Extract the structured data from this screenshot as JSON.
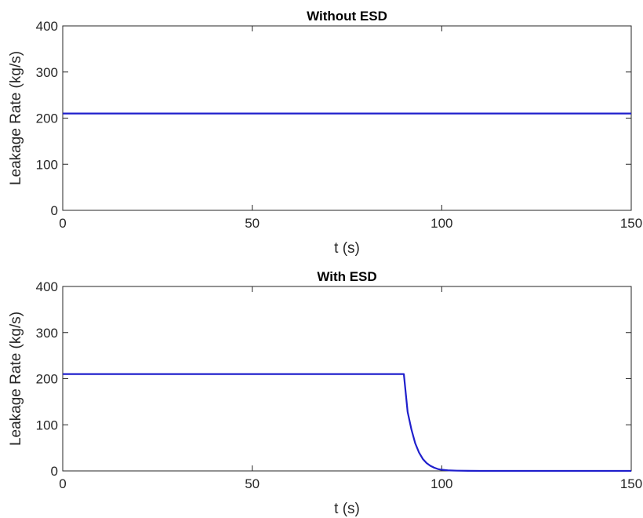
{
  "chart_data": [
    {
      "type": "line",
      "title": "Without ESD",
      "xlabel": "t (s)",
      "ylabel": "Leakage Rate (kg/s)",
      "xlim": [
        0,
        150
      ],
      "ylim": [
        0,
        400
      ],
      "xticks": [
        0,
        50,
        100,
        150
      ],
      "yticks": [
        0,
        100,
        200,
        300,
        400
      ],
      "grid": false,
      "legend": "none",
      "color": "#1f1fcc",
      "series": [
        {
          "x": [
            0,
            150
          ],
          "y": [
            210,
            210
          ]
        }
      ]
    },
    {
      "type": "line",
      "title": "With ESD",
      "xlabel": "t (s)",
      "ylabel": "Leakage Rate (kg/s)",
      "xlim": [
        0,
        150
      ],
      "ylim": [
        0,
        400
      ],
      "xticks": [
        0,
        50,
        100,
        150
      ],
      "yticks": [
        0,
        100,
        200,
        300,
        400
      ],
      "grid": false,
      "legend": "none",
      "color": "#1f1fcc",
      "series": [
        {
          "x": [
            0,
            90,
            91,
            92,
            93,
            94,
            95,
            96,
            97,
            98,
            99,
            100,
            102,
            104,
            107,
            110,
            150
          ],
          "y": [
            210,
            210,
            128,
            90,
            60,
            40,
            26,
            17,
            11,
            7,
            4,
            2.5,
            1,
            0.5,
            0.2,
            0,
            0
          ]
        }
      ]
    }
  ]
}
